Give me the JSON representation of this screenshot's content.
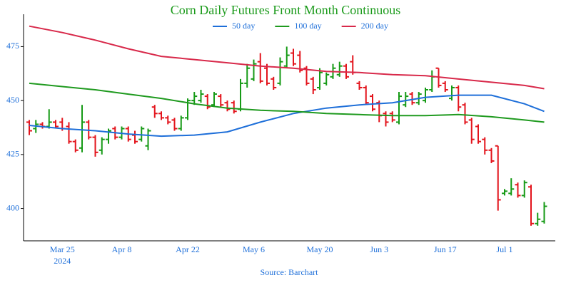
{
  "chart_data": {
    "type": "ohlc",
    "title": "Corn Daily Futures Front Month Continuous",
    "source": "Source: Barchart",
    "up_color": "#169a16",
    "down_color": "#e3141c",
    "x": [
      "2024-03-18",
      "2024-03-19",
      "2024-03-20",
      "2024-03-21",
      "2024-03-22",
      "2024-03-25",
      "2024-03-26",
      "2024-03-27",
      "2024-03-28",
      "2024-04-01",
      "2024-04-02",
      "2024-04-03",
      "2024-04-04",
      "2024-04-05",
      "2024-04-08",
      "2024-04-09",
      "2024-04-10",
      "2024-04-11",
      "2024-04-12",
      "2024-04-15",
      "2024-04-16",
      "2024-04-17",
      "2024-04-18",
      "2024-04-19",
      "2024-04-22",
      "2024-04-23",
      "2024-04-24",
      "2024-04-25",
      "2024-04-26",
      "2024-04-29",
      "2024-04-30",
      "2024-05-01",
      "2024-05-02",
      "2024-05-03",
      "2024-05-06",
      "2024-05-07",
      "2024-05-08",
      "2024-05-09",
      "2024-05-10",
      "2024-05-13",
      "2024-05-14",
      "2024-05-15",
      "2024-05-16",
      "2024-05-17",
      "2024-05-20",
      "2024-05-21",
      "2024-05-22",
      "2024-05-23",
      "2024-05-24",
      "2024-05-28",
      "2024-05-29",
      "2024-05-30",
      "2024-05-31",
      "2024-06-03",
      "2024-06-04",
      "2024-06-05",
      "2024-06-06",
      "2024-06-07",
      "2024-06-10",
      "2024-06-11",
      "2024-06-12",
      "2024-06-13",
      "2024-06-14",
      "2024-06-17",
      "2024-06-18",
      "2024-06-20",
      "2024-06-21",
      "2024-06-24",
      "2024-06-25",
      "2024-06-26",
      "2024-06-27",
      "2024-06-28",
      "2024-07-01",
      "2024-07-02",
      "2024-07-03",
      "2024-07-05",
      "2024-07-08",
      "2024-07-09",
      "2024-07-10"
    ],
    "ohlc": [
      [
        440,
        441,
        434,
        436
      ],
      [
        437,
        441,
        435,
        439
      ],
      [
        439,
        440,
        437,
        438
      ],
      [
        438,
        446,
        437,
        440
      ],
      [
        440,
        441,
        437,
        438
      ],
      [
        440,
        442,
        436,
        437
      ],
      [
        438,
        440,
        430,
        431
      ],
      [
        431,
        432,
        426,
        427
      ],
      [
        428,
        448,
        426,
        440
      ],
      [
        440,
        441,
        432,
        433
      ],
      [
        433,
        434,
        424,
        426
      ],
      [
        427,
        433,
        425,
        432
      ],
      [
        432,
        437,
        430,
        436
      ],
      [
        437,
        438,
        432,
        433
      ],
      [
        433,
        438,
        432,
        437
      ],
      [
        437,
        438,
        431,
        432
      ],
      [
        434,
        436,
        430,
        431
      ],
      [
        432,
        438,
        431,
        437
      ],
      [
        429,
        437,
        427,
        436
      ],
      [
        447,
        448,
        442,
        444
      ],
      [
        444,
        445,
        441,
        442
      ],
      [
        442,
        443,
        439,
        440
      ],
      [
        441,
        442,
        436,
        437
      ],
      [
        437,
        443,
        436,
        442
      ],
      [
        442,
        451,
        441,
        450
      ],
      [
        450,
        454,
        448,
        452
      ],
      [
        450,
        455,
        449,
        453
      ],
      [
        452,
        453,
        446,
        447
      ],
      [
        448,
        454,
        447,
        453
      ],
      [
        452,
        453,
        447,
        448
      ],
      [
        449,
        450,
        445,
        446
      ],
      [
        449,
        450,
        444,
        445
      ],
      [
        446,
        460,
        445,
        458
      ],
      [
        458,
        467,
        456,
        465
      ],
      [
        460,
        469,
        459,
        467
      ],
      [
        468,
        472,
        458,
        459
      ],
      [
        465,
        467,
        457,
        458
      ],
      [
        460,
        461,
        455,
        456
      ],
      [
        458,
        470,
        457,
        468
      ],
      [
        466,
        475,
        465,
        471
      ],
      [
        472,
        474,
        466,
        467
      ],
      [
        471,
        473,
        463,
        464
      ],
      [
        465,
        466,
        457,
        458
      ],
      [
        460,
        461,
        453,
        455
      ],
      [
        456,
        465,
        455,
        463
      ],
      [
        458,
        463,
        457,
        462
      ],
      [
        461,
        467,
        460,
        465
      ],
      [
        462,
        468,
        461,
        466
      ],
      [
        466,
        467,
        460,
        461
      ],
      [
        468,
        471,
        462,
        463
      ],
      [
        458,
        459,
        455,
        456
      ],
      [
        456,
        457,
        448,
        449
      ],
      [
        452,
        453,
        445,
        446
      ],
      [
        449,
        450,
        440,
        443
      ],
      [
        444,
        445,
        438,
        440
      ],
      [
        444,
        445,
        440,
        441
      ],
      [
        440,
        454,
        439,
        452
      ],
      [
        448,
        454,
        447,
        452
      ],
      [
        453,
        454,
        448,
        449
      ],
      [
        449,
        454,
        448,
        453
      ],
      [
        450,
        456,
        449,
        455
      ],
      [
        455,
        464,
        454,
        461
      ],
      [
        465,
        465,
        456,
        457
      ],
      [
        458,
        459,
        454,
        455
      ],
      [
        451,
        457,
        450,
        456
      ],
      [
        456,
        457,
        445,
        447
      ],
      [
        448,
        449,
        439,
        440
      ],
      [
        441,
        442,
        430,
        432
      ],
      [
        438,
        439,
        430,
        431
      ],
      [
        432,
        433,
        425,
        427
      ],
      [
        427,
        428,
        421,
        422
      ],
      [
        429,
        429,
        399,
        404
      ],
      [
        407,
        409,
        406,
        408
      ],
      [
        407,
        414,
        406,
        409
      ],
      [
        411,
        412,
        405,
        406
      ],
      [
        406,
        413,
        405,
        412
      ],
      [
        410,
        411,
        392,
        393
      ],
      [
        393,
        398,
        392,
        395
      ],
      [
        394,
        403,
        393,
        401
      ]
    ],
    "series": [
      {
        "name": "50 day",
        "color": "#1e6fd9",
        "x": [
          "2024-03-18",
          "2024-03-25",
          "2024-04-02",
          "2024-04-09",
          "2024-04-16",
          "2024-04-23",
          "2024-04-30",
          "2024-05-07",
          "2024-05-14",
          "2024-05-21",
          "2024-05-29",
          "2024-06-05",
          "2024-06-12",
          "2024-06-20",
          "2024-06-27",
          "2024-07-05",
          "2024-07-10"
        ],
        "values": [
          438.5,
          437,
          436,
          434.5,
          433.5,
          434,
          435.5,
          440,
          444,
          446.5,
          448,
          449,
          451.5,
          452.5,
          452.5,
          448.5,
          445
        ]
      },
      {
        "name": "100 day",
        "color": "#1f9a1f",
        "x": [
          "2024-03-18",
          "2024-03-25",
          "2024-04-02",
          "2024-04-09",
          "2024-04-16",
          "2024-04-23",
          "2024-04-30",
          "2024-05-07",
          "2024-05-14",
          "2024-05-21",
          "2024-05-29",
          "2024-06-05",
          "2024-06-12",
          "2024-06-20",
          "2024-06-27",
          "2024-07-05",
          "2024-07-10"
        ],
        "values": [
          458,
          456.5,
          455,
          453,
          451,
          448.5,
          446.5,
          445.5,
          445,
          444,
          443.5,
          443,
          443,
          443.5,
          442.5,
          441,
          440
        ]
      },
      {
        "name": "200 day",
        "color": "#d8294a",
        "x": [
          "2024-03-18",
          "2024-03-25",
          "2024-04-02",
          "2024-04-09",
          "2024-04-16",
          "2024-04-23",
          "2024-04-30",
          "2024-05-07",
          "2024-05-14",
          "2024-05-21",
          "2024-05-29",
          "2024-06-05",
          "2024-06-12",
          "2024-06-20",
          "2024-06-27",
          "2024-07-05",
          "2024-07-10"
        ],
        "values": [
          484.5,
          481.5,
          478,
          474,
          470.5,
          469,
          467.5,
          466,
          465,
          463.5,
          463,
          462,
          461.5,
          460,
          458.5,
          457,
          455.5
        ]
      }
    ],
    "xticks": [
      {
        "value": "2024-03-25",
        "label": "Mar 25"
      },
      {
        "value": "2024-04-08",
        "label": "Apr 8"
      },
      {
        "value": "2024-04-22",
        "label": "Apr 22"
      },
      {
        "value": "2024-05-06",
        "label": "May 6"
      },
      {
        "value": "2024-05-20",
        "label": "May 20"
      },
      {
        "value": "2024-06-03",
        "label": "Jun 3"
      },
      {
        "value": "2024-06-17",
        "label": "Jun 17"
      },
      {
        "value": "2024-07-01",
        "label": "Jul 1"
      }
    ],
    "x_year": "2024",
    "ylim": [
      385,
      490
    ],
    "yticks": [
      400,
      425,
      450,
      475
    ],
    "legend": "top"
  }
}
